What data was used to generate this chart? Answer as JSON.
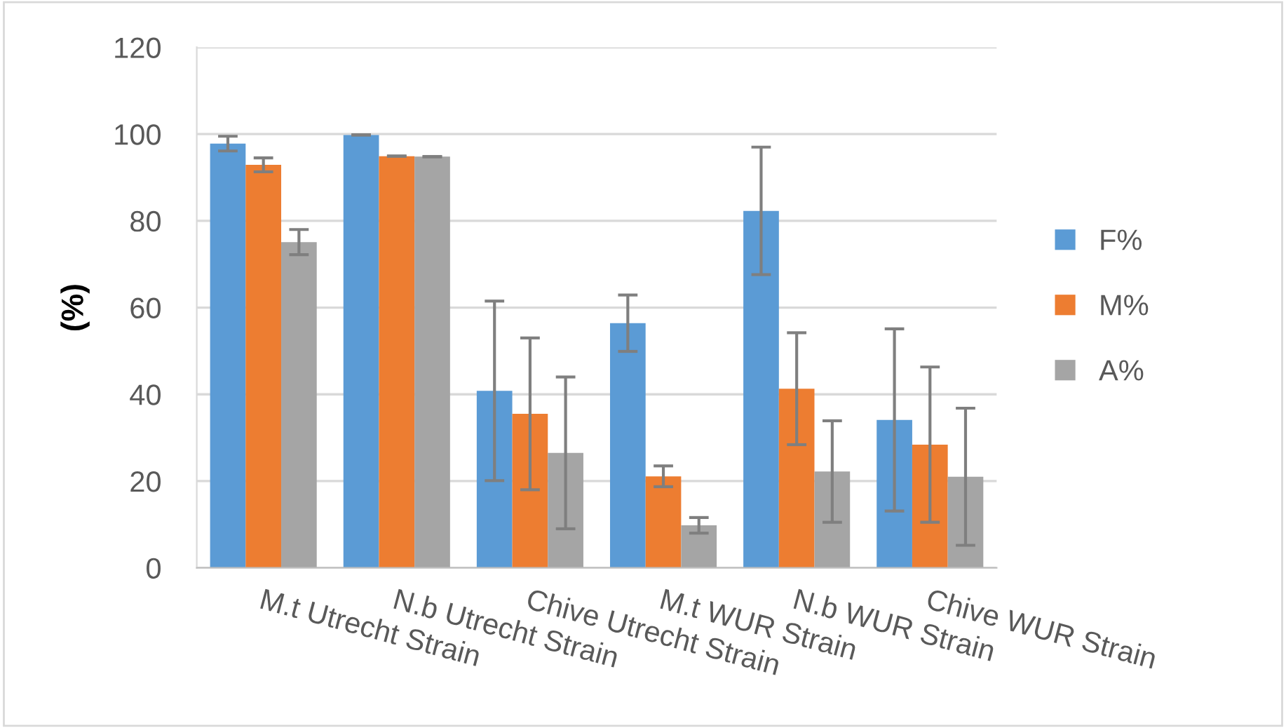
{
  "chart_data": {
    "type": "bar",
    "ylabel": "(%)",
    "categories": [
      "M.t Utrecht Strain",
      "N.b Utrecht Strain",
      "Chive Utrecht Strain",
      "M.t WUR Strain",
      "N.b WUR Strain",
      "Chive WUR Strain"
    ],
    "series": [
      {
        "name": "F%",
        "color": "#5b9bd5",
        "values": [
          97.8,
          99.8,
          40.8,
          56.4,
          82.3,
          34.1
        ],
        "errors": [
          1.7,
          0,
          20.7,
          6.5,
          14.7,
          21
        ]
      },
      {
        "name": "M%",
        "color": "#ed7d31",
        "values": [
          92.9,
          94.9,
          35.5,
          21.1,
          41.3,
          28.4
        ],
        "errors": [
          1.6,
          0,
          17.5,
          2.4,
          12.9,
          17.9
        ]
      },
      {
        "name": "A%",
        "color": "#a5a5a5",
        "values": [
          75.1,
          94.8,
          26.5,
          9.8,
          22.2,
          21.0
        ],
        "errors": [
          2.9,
          0,
          17.5,
          1.8,
          11.7,
          15.8
        ]
      }
    ],
    "ylim": [
      0,
      120
    ],
    "yticks": [
      0,
      20,
      40,
      60,
      80,
      100,
      120
    ],
    "grid": "y",
    "legend": "right"
  }
}
